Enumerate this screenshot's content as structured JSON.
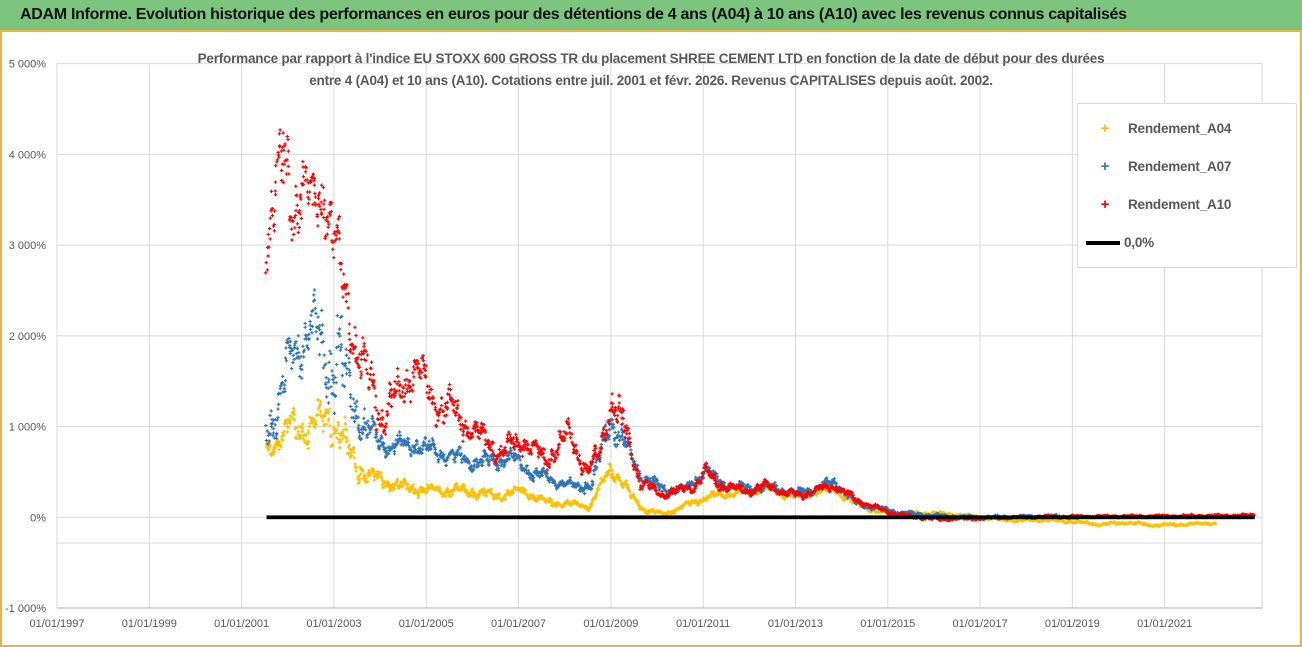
{
  "window": {
    "header_title": "ADAM Informe. Evolution historique des performances en euros pour des détentions de 4 ans (A04) à 10 ans (A10) avec les revenus connus capitalisés"
  },
  "chart": {
    "title_line1": "Performance par rapport à l'indice EU STOXX 600 GROSS TR  du placement SHREE CEMENT LTD en fonction de la date de début pour des durées",
    "title_line2": "entre 4 (A04) et 10 ans (A10).  Cotations entre juil. 2001 et févr. 2026.  Revenus CAPITALISES depuis août. 2002.",
    "legend": {
      "items": [
        {
          "label": "Rendement_A04",
          "marker": "plus",
          "color": "#FFC000"
        },
        {
          "label": "Rendement_A07",
          "marker": "plus",
          "color": "#2E75B6"
        },
        {
          "label": "Rendement_A10",
          "marker": "plus",
          "color": "#FF0000"
        },
        {
          "label": "0,0%",
          "marker": "line",
          "color": "#000000"
        }
      ]
    }
  },
  "chart_data": {
    "type": "scatter",
    "title": "Performance par rapport à l'indice EU STOXX 600 GROSS TR du placement SHREE CEMENT LTD en fonction de la date de début pour des durées entre 4 (A04) et 10 ans (A10). Cotations entre juil. 2001 et févr. 2026. Revenus CAPITALISES depuis août. 2002.",
    "x_axis": {
      "tick_labels": [
        "01/01/1997",
        "01/01/1999",
        "01/01/2001",
        "01/01/2003",
        "01/01/2005",
        "01/01/2007",
        "01/01/2009",
        "01/01/2011",
        "01/01/2013",
        "01/01/2015",
        "01/01/2017",
        "01/01/2019",
        "01/01/2021"
      ],
      "tick_years": [
        1997,
        1999,
        2001,
        2003,
        2005,
        2007,
        2009,
        2011,
        2013,
        2015,
        2017,
        2019,
        2021
      ],
      "min_year": 1997,
      "max_year": 2023.11,
      "grid": true
    },
    "y_axis": {
      "tick_labels": [
        "5 000%",
        "4 000%",
        "3 000%",
        "2 000%",
        "1 000%",
        "0%",
        "-1 000%"
      ],
      "tick_values": [
        5000,
        4000,
        3000,
        2000,
        1000,
        0,
        -1000
      ],
      "min": -1000,
      "max": 5000,
      "unit": "%",
      "extra_gridline_values": [
        -283
      ],
      "grid": true
    },
    "legend_position": "right",
    "series_notes": "keyframes are [start_year, center_value_%, band_half_spread_%] of the dense '+' marker clouds, read off the chart",
    "series": [
      {
        "name": "Rendement_A04",
        "color": "#FFC000",
        "marker": "plus",
        "x_start": 2001.54,
        "x_end": 2022.12,
        "keyframes": [
          [
            2001.54,
            730,
            110
          ],
          [
            2001.8,
            860,
            150
          ],
          [
            2002.1,
            1000,
            180
          ],
          [
            2002.45,
            950,
            190
          ],
          [
            2002.9,
            1150,
            230
          ],
          [
            2003.2,
            800,
            260
          ],
          [
            2003.5,
            560,
            160
          ],
          [
            2003.8,
            440,
            110
          ],
          [
            2004.1,
            395,
            90
          ],
          [
            2004.5,
            330,
            75
          ],
          [
            2005.0,
            300,
            65
          ],
          [
            2005.5,
            290,
            62
          ],
          [
            2006.0,
            290,
            80
          ],
          [
            2006.5,
            230,
            55
          ],
          [
            2007.1,
            300,
            62
          ],
          [
            2007.6,
            165,
            42
          ],
          [
            2008.1,
            150,
            40
          ],
          [
            2008.55,
            120,
            36
          ],
          [
            2009.0,
            550,
            95
          ],
          [
            2009.2,
            430,
            80
          ],
          [
            2009.45,
            230,
            55
          ],
          [
            2009.7,
            90,
            32
          ],
          [
            2010.15,
            35,
            26
          ],
          [
            2010.7,
            145,
            36
          ],
          [
            2011.1,
            225,
            45
          ],
          [
            2011.6,
            260,
            45
          ],
          [
            2012.0,
            290,
            48
          ],
          [
            2012.35,
            325,
            50
          ],
          [
            2012.8,
            250,
            45
          ],
          [
            2013.1,
            235,
            42
          ],
          [
            2013.5,
            290,
            45
          ],
          [
            2013.85,
            305,
            45
          ],
          [
            2014.3,
            150,
            35
          ],
          [
            2014.8,
            62,
            26
          ],
          [
            2015.3,
            38,
            22
          ],
          [
            2016.0,
            45,
            20
          ],
          [
            2016.6,
            22,
            18
          ],
          [
            2017.2,
            -12,
            15
          ],
          [
            2017.8,
            -35,
            14
          ],
          [
            2018.4,
            -30,
            14
          ],
          [
            2019.0,
            -48,
            14
          ],
          [
            2019.6,
            -78,
            14
          ],
          [
            2020.2,
            -58,
            14
          ],
          [
            2020.8,
            -88,
            14
          ],
          [
            2021.4,
            -78,
            14
          ],
          [
            2022.12,
            -65,
            13
          ]
        ]
      },
      {
        "name": "Rendement_A07",
        "color": "#2E75B6",
        "marker": "plus",
        "x_start": 2001.54,
        "x_end": 2019.12,
        "keyframes": [
          [
            2001.54,
            950,
            230
          ],
          [
            2001.8,
            1250,
            260
          ],
          [
            2002.1,
            1800,
            320
          ],
          [
            2002.5,
            2100,
            380
          ],
          [
            2002.8,
            1750,
            500
          ],
          [
            2003.1,
            1800,
            600
          ],
          [
            2003.35,
            1350,
            350
          ],
          [
            2003.6,
            1050,
            250
          ],
          [
            2004.0,
            820,
            130
          ],
          [
            2004.4,
            790,
            120
          ],
          [
            2004.78,
            810,
            120
          ],
          [
            2005.2,
            720,
            110
          ],
          [
            2005.5,
            680,
            100
          ],
          [
            2006.0,
            610,
            95
          ],
          [
            2006.5,
            620,
            95
          ],
          [
            2006.85,
            660,
            95
          ],
          [
            2007.3,
            490,
            85
          ],
          [
            2007.8,
            400,
            75
          ],
          [
            2008.3,
            330,
            65
          ],
          [
            2008.6,
            380,
            80
          ],
          [
            2009.0,
            1080,
            230
          ],
          [
            2009.2,
            900,
            180
          ],
          [
            2009.45,
            650,
            130
          ],
          [
            2009.65,
            470,
            85
          ],
          [
            2010.1,
            310,
            60
          ],
          [
            2010.6,
            300,
            55
          ],
          [
            2011.05,
            510,
            85
          ],
          [
            2011.35,
            390,
            65
          ],
          [
            2011.7,
            330,
            55
          ],
          [
            2012.1,
            320,
            50
          ],
          [
            2012.5,
            340,
            55
          ],
          [
            2013.0,
            260,
            45
          ],
          [
            2013.5,
            330,
            50
          ],
          [
            2013.85,
            395,
            55
          ],
          [
            2014.3,
            160,
            38
          ],
          [
            2014.8,
            100,
            30
          ],
          [
            2015.3,
            50,
            24
          ],
          [
            2016.0,
            18,
            18
          ],
          [
            2017.0,
            0,
            14
          ],
          [
            2018.0,
            8,
            13
          ],
          [
            2018.6,
            15,
            13
          ],
          [
            2019.12,
            -8,
            12
          ]
        ]
      },
      {
        "name": "Rendement_A10",
        "color": "#FF0000",
        "marker": "plus",
        "x_start": 2001.54,
        "x_end": 2022.95,
        "keyframes": [
          [
            2001.54,
            2950,
            320
          ],
          [
            2001.72,
            3750,
            550
          ],
          [
            2001.92,
            3850,
            500
          ],
          [
            2002.12,
            3350,
            420
          ],
          [
            2002.3,
            3800,
            450
          ],
          [
            2002.55,
            3350,
            420
          ],
          [
            2002.8,
            3650,
            420
          ],
          [
            2003.05,
            2950,
            380
          ],
          [
            2003.3,
            2250,
            380
          ],
          [
            2003.6,
            1750,
            300
          ],
          [
            2004.0,
            1130,
            240
          ],
          [
            2004.45,
            1400,
            240
          ],
          [
            2004.78,
            1680,
            240
          ],
          [
            2005.1,
            1300,
            220
          ],
          [
            2005.5,
            1200,
            200
          ],
          [
            2005.9,
            1000,
            170
          ],
          [
            2006.2,
            900,
            150
          ],
          [
            2006.6,
            700,
            130
          ],
          [
            2007.1,
            860,
            140
          ],
          [
            2007.6,
            620,
            110
          ],
          [
            2008.08,
            930,
            150
          ],
          [
            2008.5,
            500,
            110
          ],
          [
            2008.75,
            700,
            130
          ],
          [
            2009.0,
            1270,
            210
          ],
          [
            2009.2,
            1100,
            190
          ],
          [
            2009.4,
            800,
            150
          ],
          [
            2009.65,
            380,
            70
          ],
          [
            2010.1,
            255,
            55
          ],
          [
            2010.5,
            300,
            55
          ],
          [
            2010.8,
            340,
            60
          ],
          [
            2011.05,
            510,
            90
          ],
          [
            2011.3,
            380,
            65
          ],
          [
            2011.6,
            320,
            55
          ],
          [
            2012.0,
            290,
            50
          ],
          [
            2012.4,
            350,
            55
          ],
          [
            2012.8,
            260,
            45
          ],
          [
            2013.1,
            240,
            45
          ],
          [
            2013.5,
            310,
            50
          ],
          [
            2013.85,
            345,
            50
          ],
          [
            2014.3,
            200,
            40
          ],
          [
            2014.8,
            90,
            30
          ],
          [
            2015.3,
            25,
            22
          ],
          [
            2016.0,
            -20,
            18
          ],
          [
            2016.8,
            -15,
            15
          ],
          [
            2017.5,
            -5,
            13
          ],
          [
            2018.5,
            5,
            13
          ],
          [
            2019.5,
            10,
            12
          ],
          [
            2020.5,
            12,
            12
          ],
          [
            2021.5,
            15,
            12
          ],
          [
            2022.4,
            18,
            12
          ],
          [
            2022.95,
            25,
            10
          ]
        ]
      },
      {
        "name": "0,0%",
        "color": "#000000",
        "marker": "line",
        "type": "constant-line",
        "value": 0,
        "x_start": 2001.54,
        "x_end": 2022.95
      }
    ]
  },
  "colors": {
    "header_green": "#7CC57F",
    "chart_border_gold": "#F0B040",
    "grid_gray": "#D9D9D9",
    "axis_line_gray": "#BFBFBF",
    "text_gray": "#595959",
    "series_a04": "#FFC000",
    "series_a07": "#2E75B6",
    "series_a10": "#FF0000",
    "zero_line": "#000000"
  }
}
